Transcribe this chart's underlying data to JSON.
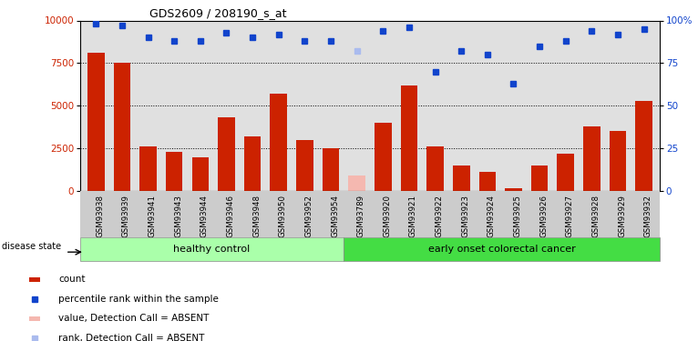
{
  "title": "GDS2609 / 208190_s_at",
  "samples": [
    "GSM93938",
    "GSM93939",
    "GSM93941",
    "GSM93943",
    "GSM93944",
    "GSM93946",
    "GSM93948",
    "GSM93950",
    "GSM93952",
    "GSM93954",
    "GSM93789",
    "GSM93920",
    "GSM93921",
    "GSM93922",
    "GSM93923",
    "GSM93924",
    "GSM93925",
    "GSM93926",
    "GSM93927",
    "GSM93928",
    "GSM93929",
    "GSM93932"
  ],
  "bar_values": [
    8100,
    7500,
    2600,
    2300,
    2000,
    4300,
    3200,
    5700,
    3000,
    2500,
    900,
    4000,
    6200,
    2600,
    1500,
    1100,
    150,
    1500,
    2200,
    3800,
    3500,
    5300
  ],
  "bar_absent": [
    false,
    false,
    false,
    false,
    false,
    false,
    false,
    false,
    false,
    false,
    true,
    false,
    false,
    false,
    false,
    false,
    false,
    false,
    false,
    false,
    false,
    false
  ],
  "percentile_values": [
    98,
    97,
    90,
    88,
    88,
    93,
    90,
    92,
    88,
    88,
    82,
    94,
    96,
    70,
    82,
    80,
    63,
    85,
    88,
    94,
    92,
    95
  ],
  "percentile_absent": [
    false,
    false,
    false,
    false,
    false,
    false,
    false,
    false,
    false,
    false,
    true,
    false,
    false,
    false,
    false,
    false,
    false,
    false,
    false,
    false,
    false,
    false
  ],
  "healthy_count": 10,
  "group1_label": "healthy control",
  "group2_label": "early onset colorectal cancer",
  "bar_color_normal": "#cc2200",
  "bar_color_absent": "#f5b8b0",
  "dot_color_normal": "#1144cc",
  "dot_color_absent": "#aabbee",
  "ylim_left": [
    0,
    10000
  ],
  "ylim_right": [
    0,
    100
  ],
  "yticks_left": [
    0,
    2500,
    5000,
    7500,
    10000
  ],
  "yticks_right": [
    0,
    25,
    50,
    75,
    100
  ],
  "background_color": "#ffffff",
  "plot_bg_color": "#e0e0e0",
  "group1_color": "#aaffaa",
  "group2_color": "#44dd44",
  "legend_items": [
    "count",
    "percentile rank within the sample",
    "value, Detection Call = ABSENT",
    "rank, Detection Call = ABSENT"
  ]
}
